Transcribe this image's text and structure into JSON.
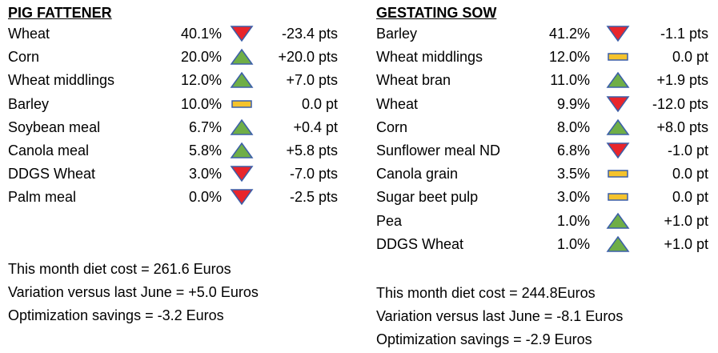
{
  "colors": {
    "down": "#e8252b",
    "up": "#6fae47",
    "flat": "#f5c32c",
    "stroke": "#3b5ea8"
  },
  "pig_fattener": {
    "title": "PIG FATTENER",
    "rows": [
      {
        "name": "Wheat",
        "pct": "40.1%",
        "trend": "down",
        "change": "-23.4 pts"
      },
      {
        "name": "Corn",
        "pct": "20.0%",
        "trend": "up",
        "change": "+20.0 pts"
      },
      {
        "name": "Wheat middlings",
        "pct": "12.0%",
        "trend": "up",
        "change": "+7.0 pts"
      },
      {
        "name": "Barley",
        "pct": "10.0%",
        "trend": "flat",
        "change": "0.0 pt"
      },
      {
        "name": "Soybean meal",
        "pct": "6.7%",
        "trend": "up",
        "change": "+0.4 pt"
      },
      {
        "name": "Canola meal",
        "pct": "5.8%",
        "trend": "up",
        "change": "+5.8 pts"
      },
      {
        "name": "DDGS Wheat",
        "pct": "3.0%",
        "trend": "down",
        "change": "-7.0 pts"
      },
      {
        "name": "Palm meal",
        "pct": "0.0%",
        "trend": "down",
        "change": "-2.5 pts"
      }
    ],
    "summary": {
      "cost": "This month diet cost = 261.6 Euros",
      "variation": "Variation versus last June = +5.0 Euros",
      "savings": "Optimization savings = -3.2 Euros"
    }
  },
  "gestating_sow": {
    "title": "GESTATING SOW",
    "rows": [
      {
        "name": "Barley",
        "pct": "41.2%",
        "trend": "down",
        "change": "-1.1 pts"
      },
      {
        "name": "Wheat middlings",
        "pct": "12.0%",
        "trend": "flat",
        "change": "0.0 pt"
      },
      {
        "name": "Wheat bran",
        "pct": "11.0%",
        "trend": "up",
        "change": "+1.9 pts"
      },
      {
        "name": "Wheat",
        "pct": "9.9%",
        "trend": "down",
        "change": "-12.0 pts"
      },
      {
        "name": "Corn",
        "pct": "8.0%",
        "trend": "up",
        "change": "+8.0 pts"
      },
      {
        "name": "Sunflower meal ND",
        "pct": "6.8%",
        "trend": "down",
        "change": "-1.0 pt"
      },
      {
        "name": "Canola grain",
        "pct": "3.5%",
        "trend": "flat",
        "change": "0.0 pt"
      },
      {
        "name": "Sugar beet pulp",
        "pct": "3.0%",
        "trend": "flat",
        "change": "0.0 pt"
      },
      {
        "name": "Pea",
        "pct": "1.0%",
        "trend": "up",
        "change": "+1.0 pt"
      },
      {
        "name": "DDGS Wheat",
        "pct": "1.0%",
        "trend": "up",
        "change": "+1.0 pt"
      }
    ],
    "summary": {
      "cost": "This month diet cost = 244.8Euros",
      "variation": "Variation versus last June = -8.1 Euros",
      "savings": "Optimization savings = -2.9 Euros"
    }
  }
}
